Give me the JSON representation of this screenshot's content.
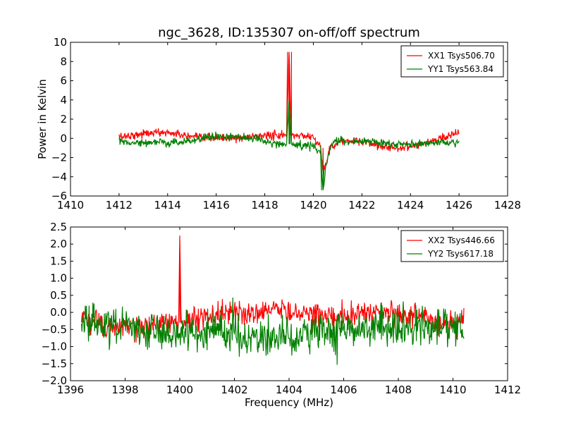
{
  "title": "ngc_3628, ID:135307 on-off/off spectrum",
  "chart_data": [
    {
      "type": "line",
      "xlabel": "",
      "ylabel": "Power in Kelvin",
      "xlim": [
        1410,
        1428
      ],
      "ylim": [
        -6,
        10
      ],
      "xticks": [
        "1410",
        "1412",
        "1414",
        "1416",
        "1418",
        "1420",
        "1422",
        "1424",
        "1426",
        "1428"
      ],
      "yticks": [
        "−6",
        "−4",
        "−2",
        "0",
        "2",
        "4",
        "6",
        "8",
        "10"
      ],
      "xtick_values": [
        1410,
        1412,
        1414,
        1416,
        1418,
        1420,
        1422,
        1424,
        1426,
        1428
      ],
      "ytick_values": [
        -6,
        -4,
        -2,
        0,
        2,
        4,
        6,
        8,
        10
      ],
      "legend_position": "top-right",
      "series": [
        {
          "name": "XX1 Tsys506.70",
          "color": "#ff0000",
          "x": [
            1412.0,
            1412.5,
            1413.0,
            1413.5,
            1414.0,
            1414.5,
            1415.0,
            1415.5,
            1416.0,
            1416.5,
            1417.0,
            1417.5,
            1418.0,
            1418.5,
            1418.9,
            1419.0,
            1419.1,
            1419.5,
            1420.0,
            1420.3,
            1420.4,
            1420.5,
            1420.7,
            1421.0,
            1421.5,
            1422.0,
            1422.5,
            1423.0,
            1423.5,
            1424.0,
            1424.5,
            1425.0,
            1425.5,
            1426.0
          ],
          "y": [
            0.2,
            0.3,
            0.5,
            0.6,
            0.6,
            0.4,
            0.1,
            0.0,
            0.1,
            0.0,
            0.0,
            0.2,
            0.3,
            0.3,
            0.3,
            9.0,
            0.3,
            0.3,
            0.2,
            -1.0,
            -3.5,
            -2.8,
            -0.9,
            -0.3,
            -0.3,
            -0.4,
            -0.6,
            -0.9,
            -1.0,
            -0.8,
            -0.5,
            -0.2,
            0.3,
            0.6
          ],
          "noise": 0.35
        },
        {
          "name": "YY1 Tsys563.84",
          "color": "#008000",
          "x": [
            1412.0,
            1412.5,
            1413.0,
            1413.5,
            1414.0,
            1414.5,
            1415.0,
            1415.5,
            1416.0,
            1416.5,
            1417.0,
            1417.5,
            1418.0,
            1418.5,
            1418.9,
            1419.0,
            1419.1,
            1419.5,
            1420.0,
            1420.3,
            1420.4,
            1420.5,
            1420.7,
            1421.0,
            1421.5,
            1422.0,
            1422.5,
            1423.0,
            1423.5,
            1424.0,
            1424.5,
            1425.0,
            1425.5,
            1426.0
          ],
          "y": [
            -0.3,
            -0.4,
            -0.5,
            -0.4,
            -0.5,
            -0.4,
            -0.2,
            0.1,
            0.1,
            0.1,
            0.1,
            0.0,
            -0.3,
            -0.6,
            -0.6,
            3.9,
            -0.6,
            -0.7,
            -0.8,
            -1.5,
            -5.4,
            -3.2,
            -0.8,
            -0.2,
            -0.3,
            -0.3,
            -0.4,
            -0.5,
            -0.7,
            -0.6,
            -0.6,
            -0.5,
            -0.4,
            -0.4
          ],
          "noise": 0.35
        }
      ]
    },
    {
      "type": "line",
      "xlabel": "Frequency (MHz)",
      "ylabel": "",
      "xlim": [
        1396,
        1412
      ],
      "ylim": [
        -2.0,
        2.5
      ],
      "xticks": [
        "1396",
        "1398",
        "1400",
        "1402",
        "1404",
        "1406",
        "1408",
        "1410",
        "1412"
      ],
      "yticks": [
        "−2.0",
        "−1.5",
        "−1.0",
        "−0.5",
        "0.0",
        "0.5",
        "1.0",
        "1.5",
        "2.0",
        "2.5"
      ],
      "xtick_values": [
        1396,
        1398,
        1400,
        1402,
        1404,
        1406,
        1408,
        1410,
        1412
      ],
      "ytick_values": [
        -2.0,
        -1.5,
        -1.0,
        -0.5,
        0.0,
        0.5,
        1.0,
        1.5,
        2.0,
        2.5
      ],
      "legend_position": "top-right",
      "series": [
        {
          "name": "XX2 Tsys446.66",
          "color": "#ff0000",
          "x": [
            1396.4,
            1397.0,
            1397.5,
            1398.0,
            1398.5,
            1399.0,
            1399.5,
            1399.95,
            1400.0,
            1400.05,
            1400.5,
            1401.0,
            1401.5,
            1402.0,
            1402.5,
            1403.0,
            1403.5,
            1404.0,
            1404.5,
            1405.0,
            1405.5,
            1406.0,
            1406.5,
            1407.0,
            1407.5,
            1408.0,
            1408.5,
            1409.0,
            1409.5,
            1410.0,
            1410.4
          ],
          "y": [
            -0.2,
            -0.3,
            -0.4,
            -0.4,
            -0.5,
            -0.4,
            -0.3,
            -0.3,
            2.25,
            -0.3,
            -0.2,
            -0.1,
            0.0,
            0.0,
            0.0,
            0.0,
            0.1,
            0.05,
            0.0,
            -0.05,
            -0.1,
            -0.1,
            -0.05,
            -0.05,
            0.0,
            -0.05,
            -0.1,
            -0.2,
            -0.3,
            -0.3,
            -0.2
          ],
          "noise": 0.3
        },
        {
          "name": "YY2 Tsys617.18",
          "color": "#008000",
          "x": [
            1396.4,
            1397.0,
            1397.5,
            1398.0,
            1398.5,
            1399.0,
            1399.5,
            1400.0,
            1400.5,
            1401.0,
            1401.5,
            1402.0,
            1402.5,
            1403.0,
            1403.5,
            1404.0,
            1404.5,
            1405.0,
            1405.5,
            1406.0,
            1406.5,
            1407.0,
            1407.5,
            1408.0,
            1408.5,
            1409.0,
            1409.5,
            1410.0,
            1410.4
          ],
          "y": [
            -0.2,
            -0.3,
            -0.4,
            -0.5,
            -0.5,
            -0.6,
            -0.6,
            -0.6,
            -0.6,
            -0.6,
            -0.6,
            -0.7,
            -0.7,
            -0.7,
            -0.7,
            -0.7,
            -0.7,
            -0.6,
            -0.6,
            -0.6,
            -0.5,
            -0.5,
            -0.5,
            -0.5,
            -0.4,
            -0.4,
            -0.4,
            -0.3,
            -0.3
          ],
          "noise": 0.45
        }
      ]
    }
  ]
}
